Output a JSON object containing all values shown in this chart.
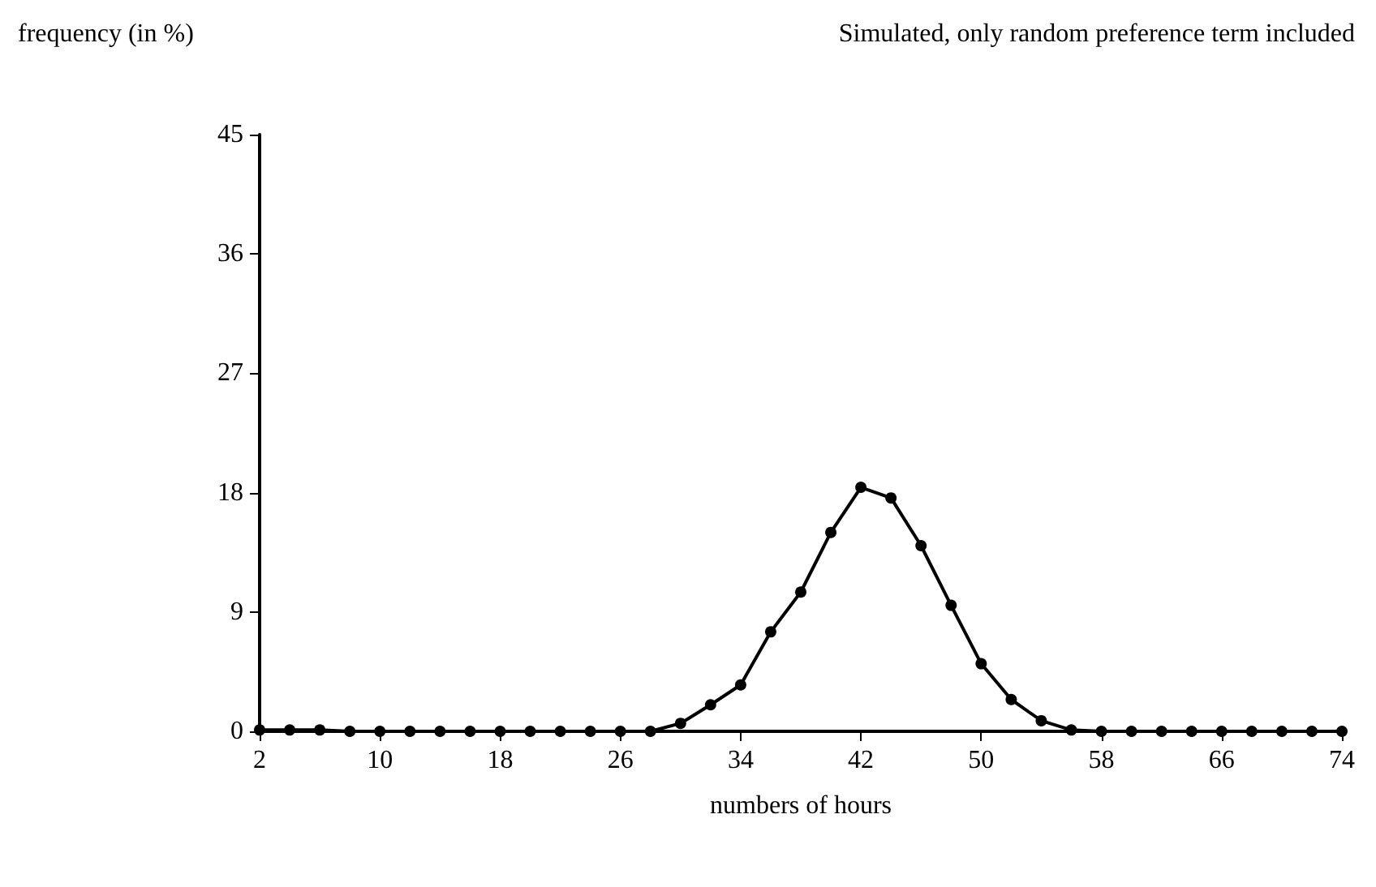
{
  "chart_data": {
    "type": "line",
    "title": "Simulated, only random preference term included",
    "xlabel": "numbers of hours",
    "ylabel": "frequency (in %)",
    "x": [
      2,
      4,
      6,
      8,
      10,
      12,
      14,
      16,
      18,
      20,
      22,
      24,
      26,
      28,
      30,
      32,
      34,
      36,
      38,
      40,
      42,
      44,
      46,
      48,
      50,
      52,
      54,
      56,
      58,
      60,
      62,
      64,
      66,
      68,
      70,
      72,
      74
    ],
    "series": [
      {
        "color": "#000000",
        "values": [
          0.1,
          0.1,
          0.1,
          0,
          0,
          0,
          0,
          0,
          0,
          0,
          0,
          0,
          0,
          0,
          0.6,
          2.0,
          3.5,
          7.5,
          10.5,
          15.0,
          18.4,
          17.6,
          14.0,
          9.5,
          5.1,
          2.4,
          0.8,
          0.1,
          0,
          0,
          0,
          0,
          0,
          0,
          0,
          0,
          0
        ]
      }
    ],
    "xlim": [
      2,
      74
    ],
    "xticks": [
      2,
      10,
      18,
      26,
      34,
      42,
      50,
      58,
      66,
      74
    ],
    "ylim": [
      0,
      45
    ],
    "yticks": [
      0,
      9,
      18,
      27,
      36,
      45
    ],
    "grid": false,
    "marker": "circle",
    "line_style": "solid"
  }
}
